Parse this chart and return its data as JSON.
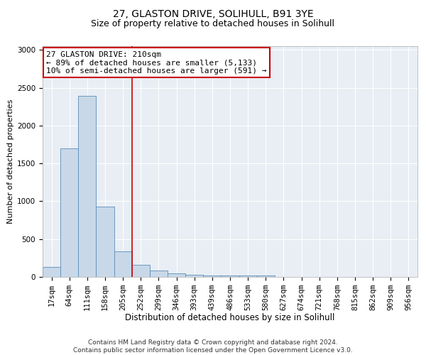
{
  "title1": "27, GLASTON DRIVE, SOLIHULL, B91 3YE",
  "title2": "Size of property relative to detached houses in Solihull",
  "xlabel": "Distribution of detached houses by size in Solihull",
  "ylabel": "Number of detached properties",
  "categories": [
    "17sqm",
    "64sqm",
    "111sqm",
    "158sqm",
    "205sqm",
    "252sqm",
    "299sqm",
    "346sqm",
    "393sqm",
    "439sqm",
    "486sqm",
    "533sqm",
    "580sqm",
    "627sqm",
    "674sqm",
    "721sqm",
    "768sqm",
    "815sqm",
    "862sqm",
    "909sqm",
    "956sqm"
  ],
  "values": [
    130,
    1700,
    2390,
    930,
    340,
    155,
    80,
    50,
    30,
    20,
    15,
    15,
    20,
    0,
    0,
    0,
    0,
    0,
    0,
    0,
    0
  ],
  "bar_color": "#c8d8e8",
  "bar_edgecolor": "#5b8db8",
  "vline_x": 4.5,
  "vline_color": "#cc0000",
  "annotation_text": "27 GLASTON DRIVE: 210sqm\n← 89% of detached houses are smaller (5,133)\n10% of semi-detached houses are larger (591) →",
  "annotation_box_color": "#ffffff",
  "annotation_box_edgecolor": "#cc0000",
  "ylim": [
    0,
    3050
  ],
  "yticks": [
    0,
    500,
    1000,
    1500,
    2000,
    2500,
    3000
  ],
  "background_color": "#e8eef4",
  "footer": "Contains HM Land Registry data © Crown copyright and database right 2024.\nContains public sector information licensed under the Open Government Licence v3.0.",
  "title1_fontsize": 10,
  "title2_fontsize": 9,
  "xlabel_fontsize": 8.5,
  "ylabel_fontsize": 8,
  "tick_fontsize": 7.5,
  "annotation_fontsize": 8,
  "footer_fontsize": 6.5
}
